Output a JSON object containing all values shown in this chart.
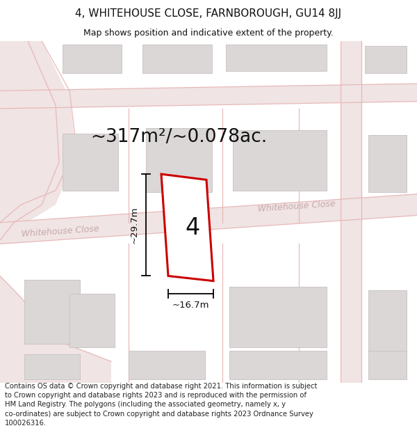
{
  "title": "4, WHITEHOUSE CLOSE, FARNBOROUGH, GU14 8JJ",
  "subtitle": "Map shows position and indicative extent of the property.",
  "footer": "Contains OS data © Crown copyright and database right 2021. This information is subject to Crown copyright and database rights 2023 and is reproduced with the permission of HM Land Registry. The polygons (including the associated geometry, namely x, y co-ordinates) are subject to Crown copyright and database rights 2023 Ordnance Survey 100026316.",
  "area_text": "~317m²/~0.078ac.",
  "width_label": "~16.7m",
  "height_label": "~29.7m",
  "number_label": "4",
  "map_bg": "#f7f3f3",
  "road_fill": "#f0e4e4",
  "road_line": "#e8b8b8",
  "block_fill": "#dbd7d7",
  "block_edge": "#c8c0c0",
  "prop_color": "#cc0000",
  "title_color": "#111111",
  "road_label_color": "#c8aaaa",
  "dim_color": "#111111",
  "title_fontsize": 11,
  "subtitle_fontsize": 9,
  "footer_fontsize": 7.2
}
